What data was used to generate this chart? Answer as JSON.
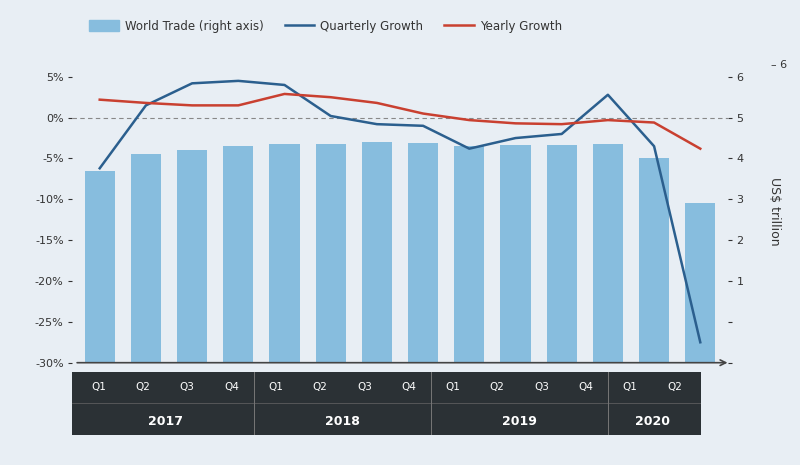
{
  "quarters": [
    "Q1",
    "Q2",
    "Q3",
    "Q4",
    "Q1",
    "Q2",
    "Q3",
    "Q4",
    "Q1",
    "Q2",
    "Q3",
    "Q4",
    "Q1",
    "Q2"
  ],
  "years": [
    "2017",
    "2017",
    "2017",
    "2017",
    "2018",
    "2018",
    "2018",
    "2018",
    "2019",
    "2019",
    "2019",
    "2019",
    "2020",
    "2020"
  ],
  "year_labels": [
    "2017",
    "2018",
    "2019",
    "2020"
  ],
  "year_separators": [
    3.5,
    7.5,
    11.5
  ],
  "bar_tops": [
    -6.5,
    -4.5,
    -4.0,
    -3.5,
    -3.2,
    -3.2,
    -3.0,
    -3.1,
    -3.5,
    -3.4,
    -3.4,
    -3.2,
    -5.0,
    -10.5
  ],
  "quarterly_growth": [
    -6.2,
    1.5,
    4.2,
    4.5,
    4.0,
    0.2,
    -0.8,
    -1.0,
    -3.8,
    -2.5,
    -2.0,
    2.8,
    -3.5,
    -27.5
  ],
  "yearly_growth": [
    2.2,
    1.8,
    1.5,
    1.5,
    2.9,
    2.5,
    1.8,
    0.5,
    -0.3,
    -0.7,
    -0.8,
    -0.3,
    -0.6,
    -3.8
  ],
  "bar_color": "#87BDDE",
  "bar_edgecolor": "none",
  "quarterly_color": "#2B5F8E",
  "yearly_color": "#C94030",
  "background_color": "#E8EEF4",
  "axis_band_color": "#2B3135",
  "left_ylim": [
    -30,
    7
  ],
  "left_yticks": [
    5,
    0,
    -5,
    -10,
    -15,
    -20,
    -25,
    -30
  ],
  "right_ticks_pct": [
    5,
    0,
    -5,
    -10,
    -15,
    -20,
    -25,
    -30
  ],
  "right_tick_labels": [
    "6",
    "5",
    "4",
    "3",
    "2",
    "1",
    "",
    ""
  ],
  "legend_items": [
    "World Trade (right axis)",
    "Quarterly Growth",
    "Yearly Growth"
  ],
  "ylabel_right": "US$ trillion",
  "line_width": 1.8,
  "zero_line_color": "#888888",
  "figsize": [
    8.0,
    4.65
  ],
  "dpi": 100
}
